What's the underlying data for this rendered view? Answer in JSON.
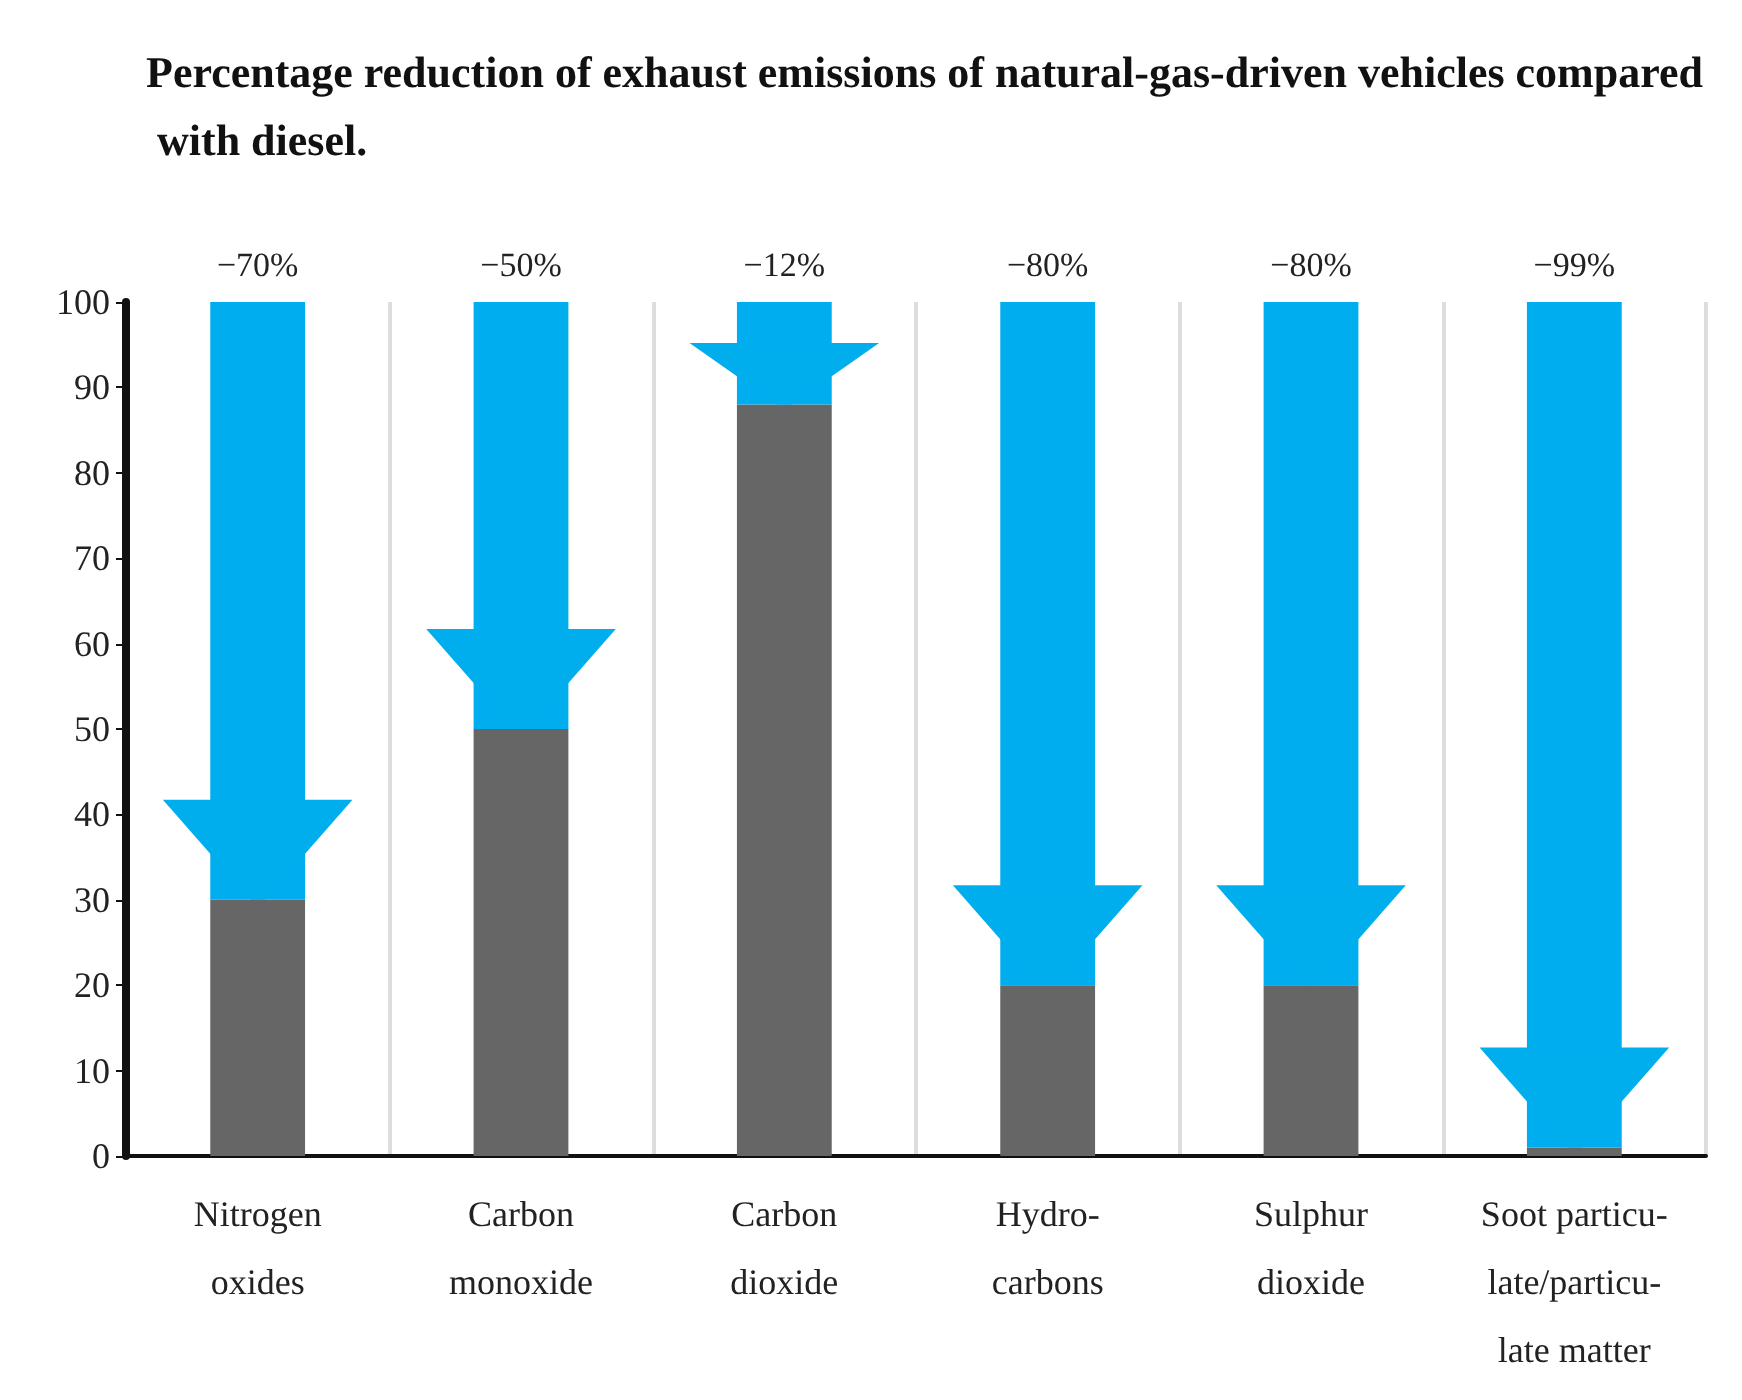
{
  "chart_data": {
    "type": "bar",
    "title": "Percentage reduction of exhaust emissions of natural-gas-driven vehicles compared with diesel.",
    "categories": [
      "Nitrogen\noxides",
      "Carbon\nmonoxide",
      "Carbon\ndioxide",
      "Hydro-\ncarbons",
      "Sulphur\ndioxide",
      "Soot particu-\nlate/particu-\nlate matter"
    ],
    "stacked": true,
    "series": [
      {
        "color": "#666666",
        "values": [
          30,
          50,
          88,
          20,
          20,
          1
        ]
      },
      {
        "color": "#00aeef",
        "values": [
          70,
          50,
          12,
          80,
          80,
          99
        ]
      }
    ],
    "annotations": [
      {
        "text": "−70%",
        "x": "Nitrogen\noxides",
        "y": 100
      },
      {
        "text": "−50%",
        "x": "Carbon\nmonoxide",
        "y": 100
      },
      {
        "text": "−12%",
        "x": "Carbon\ndioxide",
        "y": 100
      },
      {
        "text": "−80%",
        "x": "Hydro-\ncarbons",
        "y": 100
      },
      {
        "text": "−80%",
        "x": "Sulphur\ndioxide",
        "y": 100
      },
      {
        "text": "−99%",
        "x": "Soot particu-\nlate/particu-\nlate matter",
        "y": 100
      }
    ],
    "ylim": [
      0,
      100
    ],
    "yticks": [
      0,
      10,
      20,
      30,
      40,
      50,
      60,
      70,
      80,
      90,
      100
    ],
    "grid": "x"
  }
}
